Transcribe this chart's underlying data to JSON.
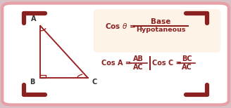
{
  "bg_outer": "#d9c0c4",
  "bg_card": "#ffffff",
  "bg_formula_box": "#fdf3e7",
  "border_color": "#e8a0a8",
  "corner_color": "#8b2020",
  "triangle_color": "#9b2525",
  "text_color": "#8b2020",
  "label_color": "#333333",
  "vertex_A": [
    0.175,
    0.76
  ],
  "vertex_B": [
    0.175,
    0.28
  ],
  "vertex_C": [
    0.38,
    0.28
  ],
  "formula1_left": "Cos θ = ",
  "formula1_num": "Base",
  "formula1_den": "Hypotaneous",
  "formula2_left": "Cos A = ",
  "formula2_frac_num": "AB",
  "formula2_frac_den": "AC",
  "formula3_left": "Cos C = ",
  "formula3_frac_num": "BC",
  "formula3_frac_den": "AC"
}
